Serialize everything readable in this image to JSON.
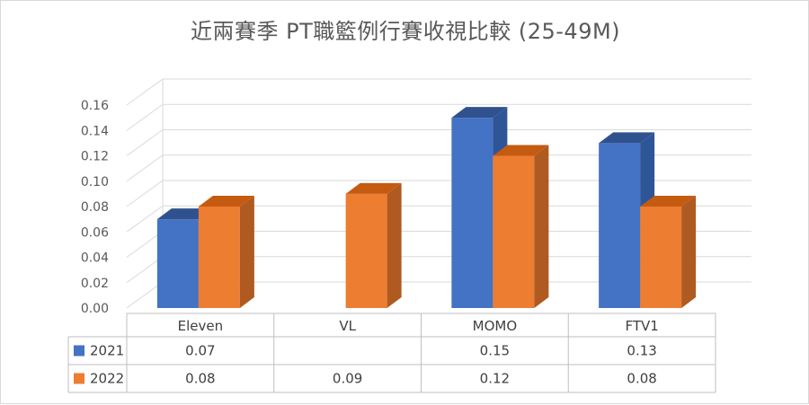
{
  "chart_data": {
    "type": "bar",
    "title": "近兩賽季 PT職籃例行賽收視比較 (25-49M)",
    "categories": [
      "Eleven",
      "VL",
      "MOMO",
      "FTV1"
    ],
    "series": [
      {
        "name": "2021",
        "color": "#4472C4",
        "side_color": "#2E5598",
        "top_color": "#2F528F",
        "values": [
          0.07,
          null,
          0.15,
          0.13
        ],
        "labels": [
          "0.07",
          "",
          "0.15",
          "0.13"
        ]
      },
      {
        "name": "2022",
        "color": "#ED7D31",
        "side_color": "#AE5A21",
        "top_color": "#C55A11",
        "values": [
          0.08,
          0.09,
          0.12,
          0.08
        ],
        "labels": [
          "0.08",
          "0.09",
          "0.12",
          "0.08"
        ]
      }
    ],
    "y_ticks": [
      "0.00",
      "0.02",
      "0.04",
      "0.06",
      "0.08",
      "0.10",
      "0.12",
      "0.14",
      "0.16"
    ],
    "ylim": [
      0,
      0.16
    ],
    "grid": true,
    "legend": "data-table-bottom",
    "three_d": true
  }
}
